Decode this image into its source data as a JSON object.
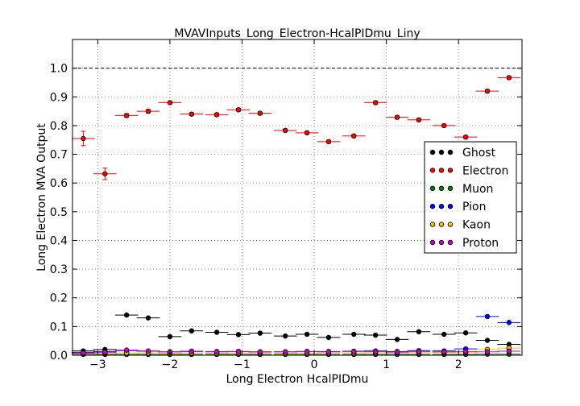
{
  "chart_data": {
    "type": "scatter",
    "title": "MVAVInputs_Long_Electron-HcalPIDmu_Liny",
    "xlabel": "Long Electron HcalPIDmu",
    "ylabel": "Long Electron MVA Output",
    "xlim": [
      -3.35,
      2.88
    ],
    "ylim": [
      0.0,
      1.1
    ],
    "x_ticks": [
      -3,
      -2,
      -1,
      0,
      1,
      2
    ],
    "x_tick_labels": [
      "−3",
      "−2",
      "−1",
      "0",
      "1",
      "2"
    ],
    "y_ticks": [
      0.0,
      0.1,
      0.2,
      0.3,
      0.4,
      0.5,
      0.6,
      0.7,
      0.8,
      0.9,
      1.0
    ],
    "y_tick_labels": [
      "0.0",
      "0.1",
      "0.2",
      "0.3",
      "0.4",
      "0.5",
      "0.6",
      "0.7",
      "0.8",
      "0.9",
      "1.0"
    ],
    "grid": true,
    "reference_line_y": 1.0,
    "legend_position": "right",
    "bin_half_width": 0.16,
    "series": [
      {
        "name": "Ghost",
        "color": "#000000",
        "x": [
          -3.2,
          -2.9,
          -2.6,
          -2.3,
          -2.0,
          -1.7,
          -1.35,
          -1.05,
          -0.75,
          -0.4,
          -0.1,
          0.2,
          0.55,
          0.85,
          1.15,
          1.45,
          1.8,
          2.1,
          2.4,
          2.7
        ],
        "y": [
          0.015,
          0.02,
          0.14,
          0.13,
          0.065,
          0.085,
          0.08,
          0.072,
          0.077,
          0.067,
          0.073,
          0.062,
          0.073,
          0.07,
          0.055,
          0.082,
          0.073,
          0.078,
          0.052,
          0.038
        ]
      },
      {
        "name": "Electron",
        "color": "#ff0000",
        "x": [
          -3.2,
          -2.9,
          -2.6,
          -2.3,
          -2.0,
          -1.7,
          -1.35,
          -1.05,
          -0.75,
          -0.4,
          -0.1,
          0.2,
          0.55,
          0.85,
          1.15,
          1.45,
          1.8,
          2.1,
          2.4,
          2.7
        ],
        "y": [
          0.755,
          0.632,
          0.835,
          0.85,
          0.88,
          0.84,
          0.838,
          0.855,
          0.843,
          0.783,
          0.775,
          0.744,
          0.764,
          0.88,
          0.829,
          0.82,
          0.8,
          0.76,
          0.92,
          0.967
        ],
        "yerr": [
          0.025,
          0.02,
          0.006,
          0.006,
          0.005,
          0.005,
          0.005,
          0.005,
          0.005,
          0.005,
          0.005,
          0.005,
          0.005,
          0.005,
          0.005,
          0.005,
          0.005,
          0.005,
          0.005,
          0.005
        ]
      },
      {
        "name": "Muon",
        "color": "#008000",
        "x": [
          -3.2,
          -2.9,
          -2.6,
          -2.3,
          -2.0,
          -1.7,
          -1.35,
          -1.05,
          -0.75,
          -0.4,
          -0.1,
          0.2,
          0.55,
          0.85,
          1.15,
          1.45,
          1.8,
          2.1,
          2.4,
          2.7
        ],
        "y": [
          0.003,
          0.003,
          0.003,
          0.003,
          0.003,
          0.003,
          0.003,
          0.003,
          0.003,
          0.003,
          0.003,
          0.003,
          0.003,
          0.003,
          0.003,
          0.003,
          0.003,
          0.003,
          0.004,
          0.004
        ]
      },
      {
        "name": "Pion",
        "color": "#0000ff",
        "x": [
          -3.2,
          -2.9,
          -2.6,
          -2.3,
          -2.0,
          -1.7,
          -1.35,
          -1.05,
          -0.75,
          -0.4,
          -0.1,
          0.2,
          0.55,
          0.85,
          1.15,
          1.45,
          1.8,
          2.1,
          2.4,
          2.7
        ],
        "y": [
          0.01,
          0.013,
          0.016,
          0.014,
          0.012,
          0.013,
          0.012,
          0.013,
          0.012,
          0.012,
          0.013,
          0.013,
          0.014,
          0.015,
          0.013,
          0.016,
          0.015,
          0.022,
          0.135,
          0.114
        ]
      },
      {
        "name": "Kaon",
        "color": "#ffc000",
        "x": [
          -3.2,
          -2.9,
          -2.6,
          -2.3,
          -2.0,
          -1.7,
          -1.35,
          -1.05,
          -0.75,
          -0.4,
          -0.1,
          0.2,
          0.55,
          0.85,
          1.15,
          1.45,
          1.8,
          2.1,
          2.4,
          2.7
        ],
        "y": [
          0.005,
          0.006,
          0.008,
          0.008,
          0.007,
          0.008,
          0.007,
          0.008,
          0.008,
          0.007,
          0.008,
          0.008,
          0.008,
          0.009,
          0.008,
          0.009,
          0.009,
          0.01,
          0.02,
          0.025
        ]
      },
      {
        "name": "Proton",
        "color": "#cc00cc",
        "x": [
          -3.2,
          -2.9,
          -2.6,
          -2.3,
          -2.0,
          -1.7,
          -1.35,
          -1.05,
          -0.75,
          -0.4,
          -0.1,
          0.2,
          0.55,
          0.85,
          1.15,
          1.45,
          1.8,
          2.1,
          2.4,
          2.7
        ],
        "y": [
          0.007,
          0.01,
          0.018,
          0.015,
          0.012,
          0.014,
          0.013,
          0.013,
          0.012,
          0.012,
          0.013,
          0.012,
          0.013,
          0.013,
          0.011,
          0.013,
          0.012,
          0.013,
          0.012,
          0.014
        ]
      }
    ]
  }
}
